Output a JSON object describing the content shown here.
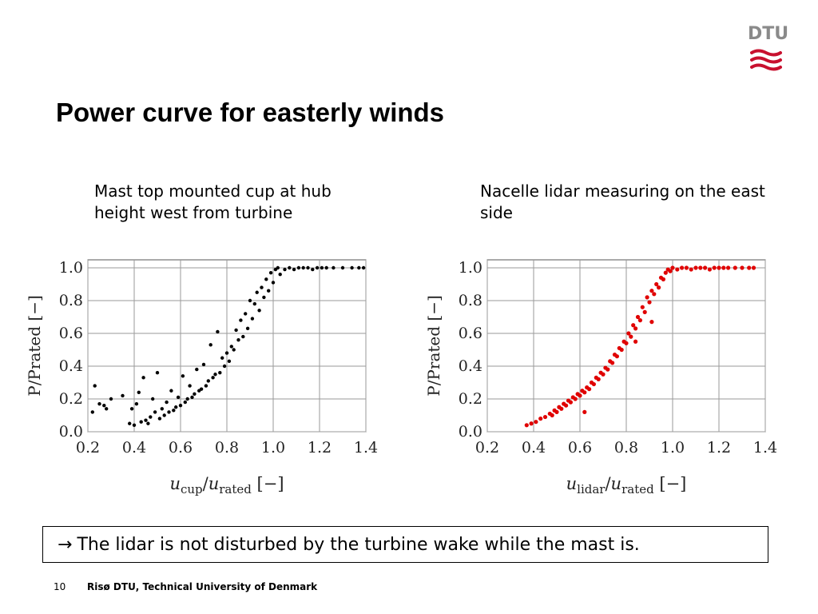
{
  "logo": {
    "text": "DTU",
    "color": "#c8102e"
  },
  "title": "Power curve for easterly winds",
  "subtitle_left": "Mast top mounted cup at hub height west from turbine",
  "subtitle_right": "Nacelle lidar measuring on the east side",
  "callout": {
    "arrow": "→",
    "text": "The lidar is not disturbed by the turbine wake while the mast is."
  },
  "footer": {
    "page_number": "10",
    "text": "Risø DTU, Technical University of Denmark"
  },
  "chart_data": [
    {
      "type": "scatter",
      "ylabel": "P/Prated [−]",
      "xlabel": {
        "main": "u",
        "sub": "cup",
        "sep": "/u",
        "sub2": "rated",
        "unit": " [−]"
      },
      "xlim": [
        0.2,
        1.4
      ],
      "ylim": [
        0.0,
        1.0
      ],
      "xticks": [
        "0.2",
        "0.4",
        "0.6",
        "0.8",
        "1.0",
        "1.2",
        "1.4"
      ],
      "yticks": [
        "0.0",
        "0.2",
        "0.4",
        "0.6",
        "0.8",
        "1.0"
      ],
      "grid": true,
      "series": [
        {
          "color": "#000000",
          "points": [
            [
              0.22,
              0.12
            ],
            [
              0.23,
              0.28
            ],
            [
              0.25,
              0.17
            ],
            [
              0.27,
              0.16
            ],
            [
              0.28,
              0.14
            ],
            [
              0.3,
              0.2
            ],
            [
              0.35,
              0.22
            ],
            [
              0.38,
              0.05
            ],
            [
              0.39,
              0.14
            ],
            [
              0.4,
              0.04
            ],
            [
              0.41,
              0.17
            ],
            [
              0.42,
              0.24
            ],
            [
              0.43,
              0.06
            ],
            [
              0.44,
              0.33
            ],
            [
              0.45,
              0.07
            ],
            [
              0.46,
              0.05
            ],
            [
              0.47,
              0.09
            ],
            [
              0.48,
              0.2
            ],
            [
              0.49,
              0.12
            ],
            [
              0.5,
              0.36
            ],
            [
              0.51,
              0.08
            ],
            [
              0.52,
              0.14
            ],
            [
              0.53,
              0.1
            ],
            [
              0.54,
              0.18
            ],
            [
              0.55,
              0.12
            ],
            [
              0.56,
              0.25
            ],
            [
              0.57,
              0.13
            ],
            [
              0.58,
              0.15
            ],
            [
              0.59,
              0.21
            ],
            [
              0.6,
              0.16
            ],
            [
              0.61,
              0.34
            ],
            [
              0.62,
              0.18
            ],
            [
              0.63,
              0.2
            ],
            [
              0.64,
              0.28
            ],
            [
              0.65,
              0.21
            ],
            [
              0.66,
              0.23
            ],
            [
              0.67,
              0.38
            ],
            [
              0.68,
              0.25
            ],
            [
              0.69,
              0.26
            ],
            [
              0.7,
              0.41
            ],
            [
              0.71,
              0.28
            ],
            [
              0.72,
              0.31
            ],
            [
              0.73,
              0.53
            ],
            [
              0.74,
              0.33
            ],
            [
              0.75,
              0.35
            ],
            [
              0.76,
              0.61
            ],
            [
              0.77,
              0.36
            ],
            [
              0.78,
              0.45
            ],
            [
              0.79,
              0.4
            ],
            [
              0.8,
              0.48
            ],
            [
              0.81,
              0.43
            ],
            [
              0.82,
              0.52
            ],
            [
              0.83,
              0.5
            ],
            [
              0.84,
              0.62
            ],
            [
              0.85,
              0.56
            ],
            [
              0.86,
              0.68
            ],
            [
              0.87,
              0.58
            ],
            [
              0.88,
              0.72
            ],
            [
              0.89,
              0.63
            ],
            [
              0.9,
              0.8
            ],
            [
              0.91,
              0.69
            ],
            [
              0.92,
              0.78
            ],
            [
              0.93,
              0.85
            ],
            [
              0.94,
              0.74
            ],
            [
              0.95,
              0.88
            ],
            [
              0.96,
              0.82
            ],
            [
              0.97,
              0.93
            ],
            [
              0.98,
              0.86
            ],
            [
              0.99,
              0.97
            ],
            [
              1.0,
              0.91
            ],
            [
              1.01,
              0.99
            ],
            [
              1.02,
              1.0
            ],
            [
              1.03,
              0.96
            ],
            [
              1.05,
              0.99
            ],
            [
              1.07,
              1.0
            ],
            [
              1.09,
              0.99
            ],
            [
              1.11,
              1.0
            ],
            [
              1.13,
              1.0
            ],
            [
              1.15,
              1.0
            ],
            [
              1.17,
              0.99
            ],
            [
              1.19,
              1.0
            ],
            [
              1.21,
              1.0
            ],
            [
              1.23,
              1.0
            ],
            [
              1.26,
              1.0
            ],
            [
              1.3,
              1.0
            ],
            [
              1.34,
              1.0
            ],
            [
              1.37,
              1.0
            ],
            [
              1.39,
              1.0
            ]
          ]
        }
      ]
    },
    {
      "type": "scatter",
      "ylabel": "P/Prated [−]",
      "xlabel": {
        "main": "u",
        "sub": "lidar",
        "sep": "/u",
        "sub2": "rated",
        "unit": " [−]"
      },
      "xlim": [
        0.2,
        1.4
      ],
      "ylim": [
        0.0,
        1.0
      ],
      "xticks": [
        "0.2",
        "0.4",
        "0.6",
        "0.8",
        "1.0",
        "1.2",
        "1.4"
      ],
      "yticks": [
        "0.0",
        "0.2",
        "0.4",
        "0.6",
        "0.8",
        "1.0"
      ],
      "grid": true,
      "series": [
        {
          "color": "#e00000",
          "points": [
            [
              0.37,
              0.04
            ],
            [
              0.39,
              0.05
            ],
            [
              0.41,
              0.06
            ],
            [
              0.43,
              0.08
            ],
            [
              0.45,
              0.09
            ],
            [
              0.47,
              0.11
            ],
            [
              0.48,
              0.1
            ],
            [
              0.49,
              0.13
            ],
            [
              0.5,
              0.12
            ],
            [
              0.51,
              0.15
            ],
            [
              0.52,
              0.14
            ],
            [
              0.53,
              0.17
            ],
            [
              0.54,
              0.16
            ],
            [
              0.55,
              0.19
            ],
            [
              0.56,
              0.18
            ],
            [
              0.57,
              0.21
            ],
            [
              0.58,
              0.2
            ],
            [
              0.59,
              0.23
            ],
            [
              0.6,
              0.22
            ],
            [
              0.61,
              0.25
            ],
            [
              0.62,
              0.24
            ],
            [
              0.63,
              0.27
            ],
            [
              0.64,
              0.26
            ],
            [
              0.65,
              0.3
            ],
            [
              0.66,
              0.29
            ],
            [
              0.67,
              0.33
            ],
            [
              0.68,
              0.32
            ],
            [
              0.69,
              0.36
            ],
            [
              0.7,
              0.35
            ],
            [
              0.71,
              0.39
            ],
            [
              0.72,
              0.38
            ],
            [
              0.73,
              0.43
            ],
            [
              0.74,
              0.42
            ],
            [
              0.75,
              0.47
            ],
            [
              0.76,
              0.46
            ],
            [
              0.77,
              0.51
            ],
            [
              0.78,
              0.5
            ],
            [
              0.79,
              0.55
            ],
            [
              0.8,
              0.54
            ],
            [
              0.81,
              0.6
            ],
            [
              0.82,
              0.58
            ],
            [
              0.83,
              0.65
            ],
            [
              0.84,
              0.63
            ],
            [
              0.85,
              0.7
            ],
            [
              0.86,
              0.68
            ],
            [
              0.87,
              0.76
            ],
            [
              0.88,
              0.73
            ],
            [
              0.89,
              0.82
            ],
            [
              0.9,
              0.79
            ],
            [
              0.91,
              0.86
            ],
            [
              0.92,
              0.84
            ],
            [
              0.93,
              0.9
            ],
            [
              0.94,
              0.88
            ],
            [
              0.95,
              0.94
            ],
            [
              0.96,
              0.93
            ],
            [
              0.97,
              0.97
            ],
            [
              0.98,
              0.99
            ],
            [
              0.99,
              0.98
            ],
            [
              1.0,
              1.0
            ],
            [
              1.02,
              0.99
            ],
            [
              1.04,
              1.0
            ],
            [
              1.06,
              1.0
            ],
            [
              1.08,
              0.99
            ],
            [
              1.1,
              1.0
            ],
            [
              1.12,
              1.0
            ],
            [
              1.14,
              1.0
            ],
            [
              1.16,
              0.99
            ],
            [
              1.18,
              1.0
            ],
            [
              1.2,
              1.0
            ],
            [
              1.22,
              1.0
            ],
            [
              1.24,
              1.0
            ],
            [
              1.27,
              1.0
            ],
            [
              1.3,
              1.0
            ],
            [
              1.33,
              1.0
            ],
            [
              1.35,
              1.0
            ],
            [
              0.62,
              0.12
            ],
            [
              0.84,
              0.55
            ],
            [
              0.91,
              0.67
            ]
          ]
        }
      ]
    }
  ]
}
